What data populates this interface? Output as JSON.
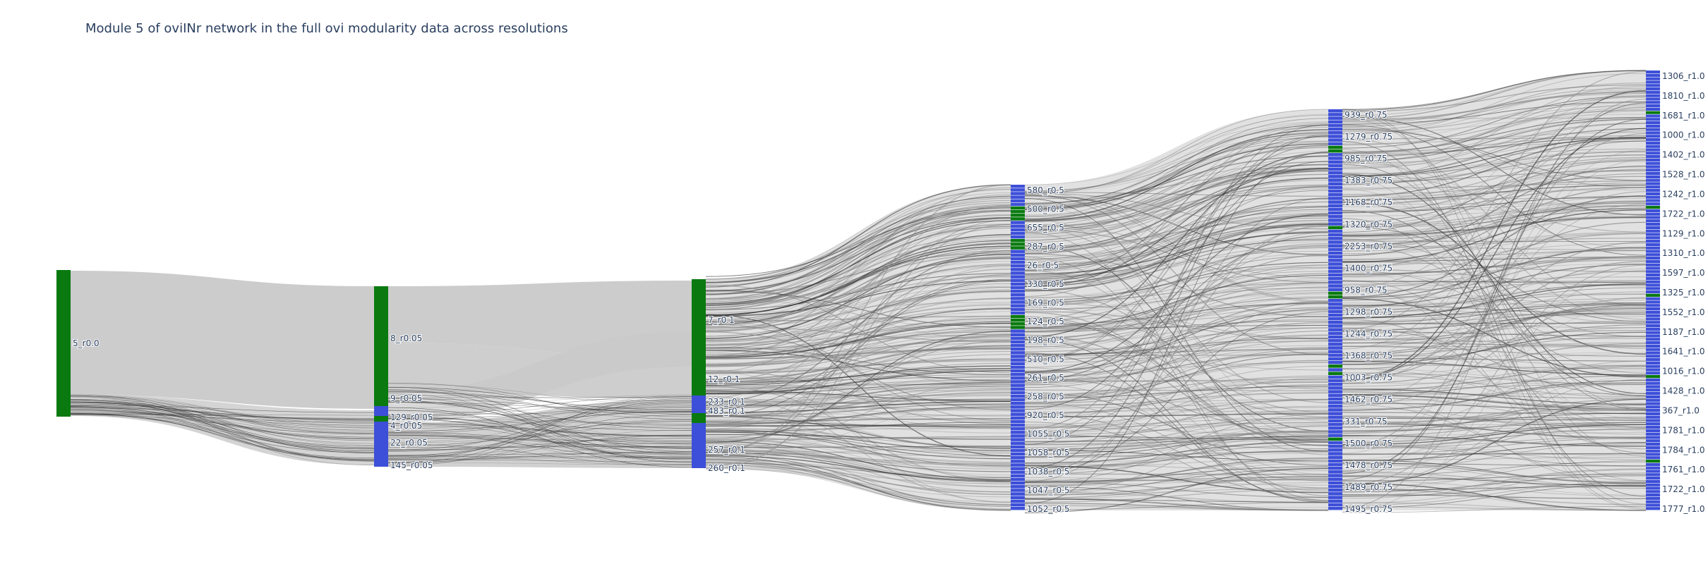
{
  "title": "Module 5 of oviINr network in the full ovi modularity data across resolutions",
  "colors": {
    "module_node": "#0a7a10",
    "other_node": "#3d4fd8",
    "link_light": "#c9c9c9",
    "link_dark": "#333333",
    "label": "#2a3f5f"
  },
  "chart_data": {
    "type": "sankey",
    "columns": [
      {
        "resolution": "r0.0",
        "nodes": [
          {
            "label": "5_r0.0",
            "color": "module"
          }
        ]
      },
      {
        "resolution": "r0.05",
        "nodes": [
          {
            "label": "8_r0.05",
            "color": "module"
          },
          {
            "label": "9_r0.05",
            "color": "other"
          },
          {
            "label": "129_r0.05",
            "color": "other"
          },
          {
            "label": "4_r0.05",
            "color": "module"
          },
          {
            "label": "22_r0.05",
            "color": "other"
          },
          {
            "label": "145_r0.05",
            "color": "other"
          }
        ]
      },
      {
        "resolution": "r0.1",
        "nodes": [
          {
            "label": "7_r0.1",
            "color": "module"
          },
          {
            "label": "12_r0.1",
            "color": "module"
          },
          {
            "label": "233_r0.1",
            "color": "other"
          },
          {
            "label": "483_r0.1",
            "color": "other"
          },
          {
            "label": "257_r0.1",
            "color": "other"
          },
          {
            "label": "260_r0.1",
            "color": "other"
          }
        ]
      },
      {
        "resolution": "r0.5",
        "nodes": [
          {
            "label": "580_r0.5"
          },
          {
            "label": "500_r0.5"
          },
          {
            "label": "655_r0.5"
          },
          {
            "label": "287_r0.5"
          },
          {
            "label": "26_r0.5"
          },
          {
            "label": "330_r0.5"
          },
          {
            "label": "169_r0.5"
          },
          {
            "label": "124_r0.5"
          },
          {
            "label": "198_r0.5"
          },
          {
            "label": "510_r0.5"
          },
          {
            "label": "261_r0.5"
          },
          {
            "label": "258_r0.5"
          },
          {
            "label": "920_r0.5"
          },
          {
            "label": "1055_r0.5"
          },
          {
            "label": "1058_r0.5"
          },
          {
            "label": "1038_r0.5"
          },
          {
            "label": "1047_r0.5"
          },
          {
            "label": "1052_r0.5"
          }
        ]
      },
      {
        "resolution": "r0.75",
        "nodes": [
          {
            "label": "939_r0.75"
          },
          {
            "label": "1279_r0.75"
          },
          {
            "label": "985_r0.75"
          },
          {
            "label": "1383_r0.75"
          },
          {
            "label": "1168_r0.75"
          },
          {
            "label": "1320_r0.75"
          },
          {
            "label": "2253_r0.75"
          },
          {
            "label": "1400_r0.75"
          },
          {
            "label": "958_r0.75"
          },
          {
            "label": "1298_r0.75"
          },
          {
            "label": "1244_r0.75"
          },
          {
            "label": "1368_r0.75"
          },
          {
            "label": "1003_r0.75"
          },
          {
            "label": "1462_r0.75"
          },
          {
            "label": "331_r0.75"
          },
          {
            "label": "1500_r0.75"
          },
          {
            "label": "1478_r0.75"
          },
          {
            "label": "1489_r0.75"
          },
          {
            "label": "1495_r0.75"
          }
        ]
      },
      {
        "resolution": "r1.0",
        "nodes": [
          {
            "label": "1306_r1.0"
          },
          {
            "label": "1810_r1.0"
          },
          {
            "label": "1681_r1.0"
          },
          {
            "label": "1000_r1.0"
          },
          {
            "label": "1402_r1.0"
          },
          {
            "label": "1528_r1.0"
          },
          {
            "label": "1242_r1.0"
          },
          {
            "label": "1722_r1.0"
          },
          {
            "label": "1129_r1.0"
          },
          {
            "label": "1310_r1.0"
          },
          {
            "label": "1597_r1.0"
          },
          {
            "label": "1325_r1.0"
          },
          {
            "label": "1552_r1.0"
          },
          {
            "label": "1187_r1.0"
          },
          {
            "label": "1641_r1.0"
          },
          {
            "label": "1016_r1.0"
          },
          {
            "label": "1428_r1.0"
          },
          {
            "label": "367_r1.0"
          },
          {
            "label": "1781_r1.0"
          },
          {
            "label": "1784_r1.0"
          },
          {
            "label": "1761_r1.0"
          },
          {
            "label": "1722_r1.0"
          },
          {
            "label": "1777_r1.0"
          }
        ]
      }
    ]
  }
}
